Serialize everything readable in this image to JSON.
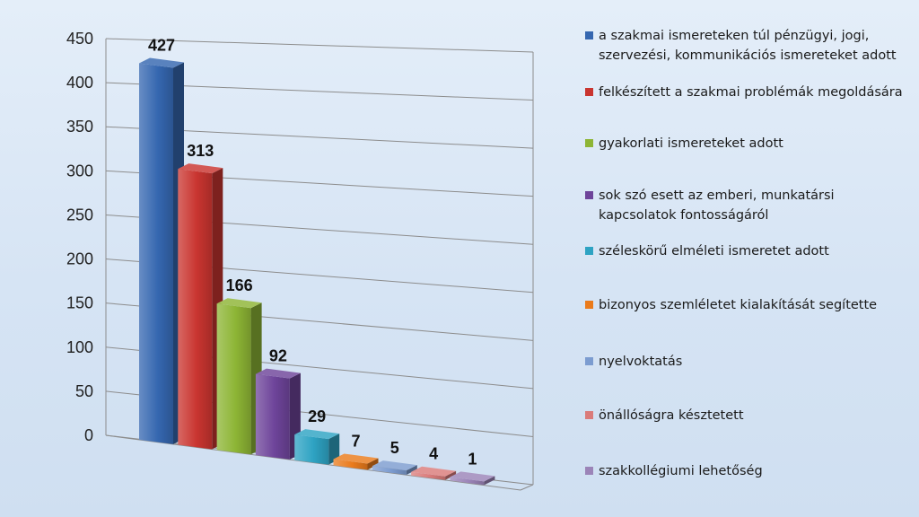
{
  "colors": {
    "background": "#d9e6f5",
    "grid": "#8c8c8c",
    "floor": "#b8c7d8"
  },
  "chart_data": {
    "type": "bar",
    "title": "",
    "xlabel": "",
    "ylabel": "",
    "ylim": [
      0,
      450
    ],
    "yticks": [
      "0",
      "50",
      "100",
      "150",
      "200",
      "250",
      "300",
      "350",
      "400",
      "450"
    ],
    "grid": true,
    "legend_position": "right",
    "three_d": true,
    "categories": [
      "a szakmai ismereteken túl pénzügyi, jogi, szervezési, kommunikációs ismereteket adott",
      "felkészített a szakmai problémák megoldására",
      "gyakorlati ismereteket adott",
      "sok szó esett az emberi, munkatársi kapcsolatok fontosságáról",
      "széleskörű elméleti ismeretet adott",
      "bizonyos szemléletet kialakítását segítette",
      "nyelvoktatás",
      "önállóságra késztetett",
      "szakkollégiumi lehetőség"
    ],
    "values": [
      427,
      313,
      166,
      92,
      29,
      7,
      5,
      4,
      1
    ],
    "data_labels": [
      "427",
      "313",
      "166",
      "92",
      "29",
      "7",
      "5",
      "4",
      "1"
    ],
    "colors": [
      "#3567b0",
      "#c93530",
      "#8db535",
      "#6e449a",
      "#2ea3c3",
      "#ea7b1c",
      "#7c9cd0",
      "#da7b7a",
      "#9b84b8"
    ]
  }
}
